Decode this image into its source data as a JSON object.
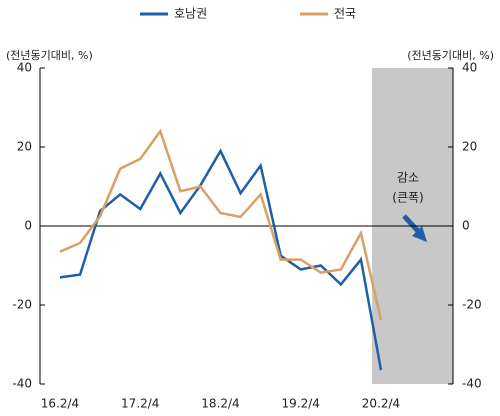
{
  "chart_data": {
    "type": "line",
    "y_label_left": "(전년동기대비, %)",
    "y_label_right": "(전년동기대비, %)",
    "annotation": [
      "감소",
      "(큰폭)"
    ],
    "categories": [
      "16.2/4",
      null,
      null,
      null,
      "17.2/4",
      null,
      null,
      null,
      "18.2/4",
      null,
      null,
      null,
      "19.2/4",
      null,
      null,
      null,
      "20.2/4"
    ],
    "series": [
      {
        "name": "호남권",
        "color": "#1f5fa8",
        "values": [
          -13,
          -12.3,
          3.8,
          8,
          4.3,
          13.3,
          3.3,
          10.3,
          19,
          8.3,
          15.3,
          -7.5,
          -11,
          -10,
          -14.8,
          -8.5,
          -36.5
        ]
      },
      {
        "name": "전국",
        "color": "#d9a066",
        "values": [
          -6.5,
          -4.3,
          2.5,
          14.5,
          17,
          24,
          8.8,
          10,
          3.3,
          2.3,
          8,
          -8.5,
          -8.5,
          -11.8,
          -11,
          -1.8,
          -23.8
        ]
      }
    ],
    "ylim": [
      -40,
      40
    ],
    "yticks": [
      -40,
      -20,
      0,
      20,
      40
    ],
    "y2lim": [
      -40,
      40
    ],
    "y2ticks": [
      -40,
      -20,
      0,
      20,
      40
    ]
  }
}
